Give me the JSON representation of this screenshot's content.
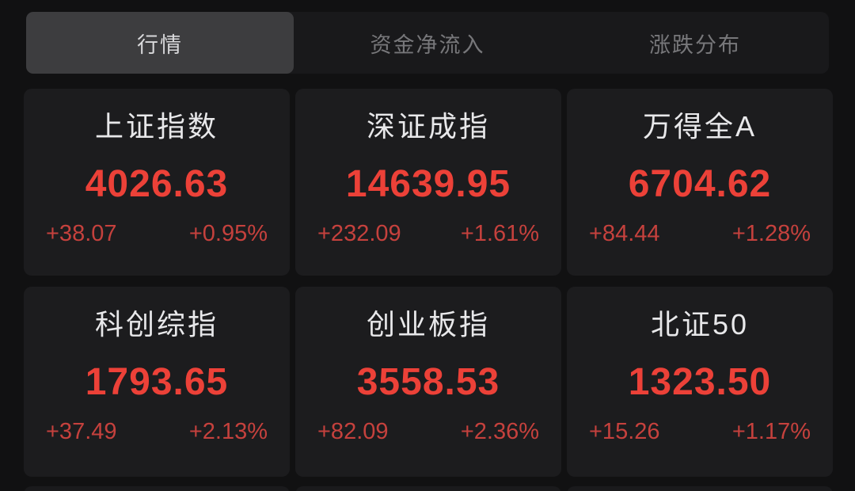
{
  "tabs": [
    {
      "label": "行情",
      "active": true
    },
    {
      "label": "资金净流入",
      "active": false
    },
    {
      "label": "涨跌分布",
      "active": false
    }
  ],
  "indices": [
    {
      "name": "上证指数",
      "value": "4026.63",
      "change": "+38.07",
      "change_pct": "+0.95%"
    },
    {
      "name": "深证成指",
      "value": "14639.95",
      "change": "+232.09",
      "change_pct": "+1.61%"
    },
    {
      "name": "万得全A",
      "value": "6704.62",
      "change": "+84.44",
      "change_pct": "+1.28%"
    },
    {
      "name": "科创综指",
      "value": "1793.65",
      "change": "+37.49",
      "change_pct": "+2.13%"
    },
    {
      "name": "创业板指",
      "value": "3558.53",
      "change": "+82.09",
      "change_pct": "+2.36%"
    },
    {
      "name": "北证50",
      "value": "1323.50",
      "change": "+15.26",
      "change_pct": "+1.17%"
    }
  ],
  "colors": {
    "page_bg": "#111112",
    "tab_strip_bg": "#19191b",
    "active_tab_bg": "#3d3d3f",
    "card_bg": "#1c1c1e",
    "title_text": "#e8e8ea",
    "up_value_red": "#ec4138",
    "up_change_red": "#c5413d"
  }
}
